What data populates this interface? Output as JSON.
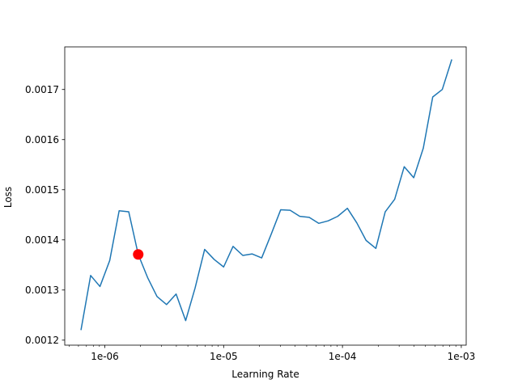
{
  "chart_data": {
    "type": "line",
    "title": "",
    "xlabel": "Learning Rate",
    "ylabel": "Loss",
    "xscale": "log",
    "xlim": [
      4.6e-07,
      0.0011
    ],
    "ylim": [
      0.00119,
      0.001785
    ],
    "grid": false,
    "x_ticks": [
      {
        "value": 1e-06,
        "label": "1e-06"
      },
      {
        "value": 1e-05,
        "label": "1e-05"
      },
      {
        "value": 0.0001,
        "label": "1e-04"
      },
      {
        "value": 0.001,
        "label": "1e-03"
      }
    ],
    "y_ticks": [
      {
        "value": 0.0012,
        "label": "0.0012"
      },
      {
        "value": 0.0013,
        "label": "0.0013"
      },
      {
        "value": 0.0014,
        "label": "0.0014"
      },
      {
        "value": 0.0015,
        "label": "0.0015"
      },
      {
        "value": 0.0016,
        "label": "0.0016"
      },
      {
        "value": 0.0017,
        "label": "0.0017"
      }
    ],
    "series": [
      {
        "color": "#1f77b4",
        "x": [
          6.3e-07,
          7.6e-07,
          9.1e-07,
          1.1e-06,
          1.32e-06,
          1.59e-06,
          1.91e-06,
          2.29e-06,
          2.75e-06,
          3.31e-06,
          3.98e-06,
          4.79e-06,
          5.75e-06,
          6.92e-06,
          8.32e-06,
          1e-05,
          1.2e-05,
          1.45e-05,
          1.74e-05,
          2.09e-05,
          2.51e-05,
          3.02e-05,
          3.63e-05,
          4.37e-05,
          5.25e-05,
          6.31e-05,
          7.59e-05,
          9.12e-05,
          0.00011,
          0.000132,
          0.000158,
          0.000191,
          0.000229,
          0.000275,
          0.000331,
          0.000398,
          0.000479,
          0.000575,
          0.000692,
          0.000832
        ],
        "y": [
          0.00122,
          0.001329,
          0.001307,
          0.001359,
          0.001458,
          0.001456,
          0.001371,
          0.001325,
          0.001287,
          0.001271,
          0.001292,
          0.001239,
          0.001304,
          0.001381,
          0.001361,
          0.001346,
          0.001387,
          0.001369,
          0.001372,
          0.001364,
          0.001411,
          0.00146,
          0.001459,
          0.001447,
          0.001445,
          0.001433,
          0.001438,
          0.001447,
          0.001463,
          0.001434,
          0.001399,
          0.001383,
          0.001456,
          0.001481,
          0.001546,
          0.001524,
          0.001583,
          0.001685,
          0.0017,
          0.00176
        ]
      }
    ],
    "highlight_point": {
      "x": 1.91e-06,
      "y": 0.001371,
      "color": "#ff0000"
    }
  }
}
